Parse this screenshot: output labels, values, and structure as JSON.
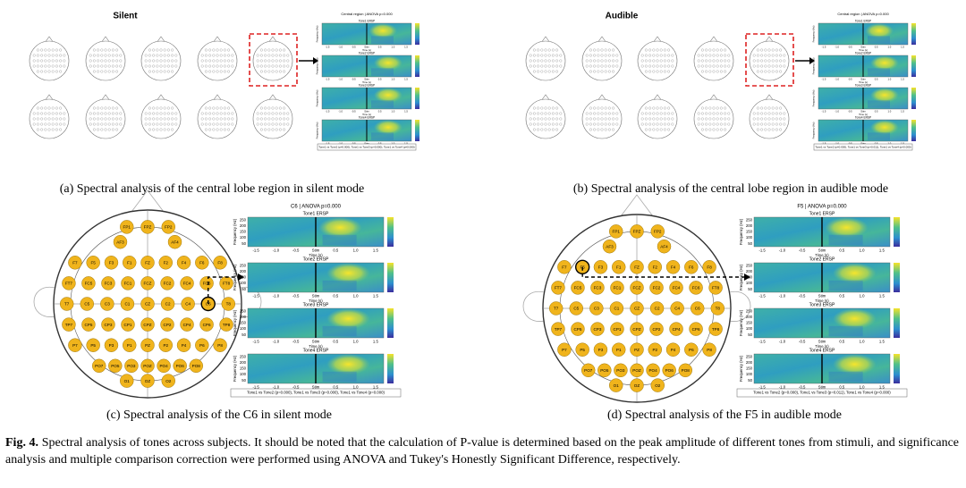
{
  "panels": [
    {
      "label": "(a) Spectral analysis of the central lobe region in silent mode",
      "mode": "Silent",
      "title": "Central region | ANOVA p=0.000",
      "subplots": [
        "Tone1 ERSP",
        "Tone2 ERSP",
        "Tone3 ERSP",
        "Tone4 ERSP"
      ],
      "stats": "Tone1 vs Tone2 (p=0.000), Tone1 vs Tone3 (p=0.000), Tone1 vs Tone4 (p=0.000)"
    },
    {
      "label": "(b) Spectral analysis of the central lobe region in audible mode",
      "mode": "Audible",
      "title": "Central region | ANOVA p=0.000",
      "subplots": [
        "Tone1 ERSP",
        "Tone2 ERSP",
        "Tone3 ERSP",
        "Tone4 ERSP"
      ],
      "stats": "Tone1 vs Tone2 (p=0.000), Tone1 vs Tone3 (p=0.011), Tone1 vs Tone4 (p=0.000)"
    },
    {
      "label": "(c) Spectral analysis of the C6 in silent mode",
      "electrode": "C6",
      "title": "C6 | ANOVA p=0.000",
      "subplots": [
        "Tone1 ERSP",
        "Tone2 ERSP",
        "Tone3 ERSP",
        "Tone4 ERSP"
      ],
      "stats": "Tone1 vs Tone2 (p=0.000), Tone1 vs Tone3 (p=0.000), Tone1 vs Tone4 (p=0.000)"
    },
    {
      "label": "(d) Spectral analysis of the F5 in audible mode",
      "electrode": "F5",
      "title": "F5 | ANOVA p=0.000",
      "subplots": [
        "Tone1 ERSP",
        "Tone2 ERSP",
        "Tone3 ERSP",
        "Tone4 ERSP"
      ],
      "stats": "Tone1 vs Tone2 (p=0.000), Tone1 vs Tone3 (p=0.011), Tone1 vs Tone4 (p=0.000)"
    }
  ],
  "axis": {
    "ylabel": "Frequency (Hz)",
    "xlabel": "Time (s)",
    "xticks": [
      "-1.5",
      "-1.0",
      "-0.5",
      "Stim",
      "0.5",
      "1.0",
      "1.5"
    ],
    "yticks": [
      "250",
      "200",
      "150",
      "100",
      "50"
    ]
  },
  "electrodes": [
    [
      "FP1",
      "FPZ",
      "FP2"
    ],
    [
      "AF3",
      "AF4"
    ],
    [
      "F7",
      "F5",
      "F3",
      "F1",
      "FZ",
      "F2",
      "F4",
      "F6",
      "F8"
    ],
    [
      "FT7",
      "FC5",
      "FC3",
      "FC1",
      "FCZ",
      "FC2",
      "FC4",
      "FC6",
      "FT8"
    ],
    [
      "T7",
      "C5",
      "C3",
      "C1",
      "CZ",
      "C2",
      "C4",
      "C6",
      "T8"
    ],
    [
      "TP7",
      "CP5",
      "CP3",
      "CP1",
      "CPZ",
      "CP2",
      "CP4",
      "CP6",
      "TP8"
    ],
    [
      "P7",
      "P5",
      "P3",
      "P1",
      "PZ",
      "P2",
      "P4",
      "P6",
      "P8"
    ],
    [
      "PO7",
      "PO5",
      "PO3",
      "POZ",
      "PO4",
      "PO6",
      "PO8"
    ],
    [
      "O1",
      "OZ",
      "O2"
    ]
  ],
  "caption": {
    "label": "Fig. 4.",
    "text": "Spectral analysis of tones across subjects. It should be noted that the calculation of P-value is determined based on the peak amplitude of different tones from stimuli, and significance analysis and multiple comparison correction were performed using ANOVA and Tukey's Honestly Significant Difference, respectively."
  }
}
